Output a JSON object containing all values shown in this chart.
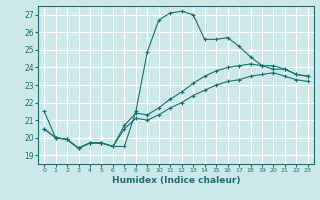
{
  "title": "",
  "xlabel": "Humidex (Indice chaleur)",
  "xlim": [
    -0.5,
    23.5
  ],
  "ylim": [
    18.5,
    27.5
  ],
  "yticks": [
    19,
    20,
    21,
    22,
    23,
    24,
    25,
    26,
    27
  ],
  "xticks": [
    0,
    1,
    2,
    3,
    4,
    5,
    6,
    7,
    8,
    9,
    10,
    11,
    12,
    13,
    14,
    15,
    16,
    17,
    18,
    19,
    20,
    21,
    22,
    23
  ],
  "bg_color": "#cde8e8",
  "line_color": "#1a7070",
  "grid_color": "#ffffff",
  "lines": [
    {
      "x": [
        0,
        1,
        2,
        3,
        4,
        5,
        6,
        7,
        8,
        9,
        10,
        11,
        12,
        13,
        14,
        15,
        16,
        17,
        18,
        19,
        20,
        21,
        22,
        23
      ],
      "y": [
        21.5,
        20.0,
        19.9,
        19.4,
        19.7,
        19.7,
        19.5,
        19.5,
        21.5,
        24.9,
        26.7,
        27.1,
        27.2,
        27.0,
        25.6,
        25.6,
        25.7,
        25.2,
        24.6,
        24.1,
        23.9,
        23.9,
        23.6,
        23.5
      ]
    },
    {
      "x": [
        0,
        1,
        2,
        3,
        4,
        5,
        6,
        7,
        8,
        9,
        10,
        11,
        12,
        13,
        14,
        15,
        16,
        17,
        18,
        19,
        20,
        21,
        22,
        23
      ],
      "y": [
        20.5,
        20.0,
        19.9,
        19.4,
        19.7,
        19.7,
        19.5,
        20.7,
        21.4,
        21.3,
        21.7,
        22.2,
        22.6,
        23.1,
        23.5,
        23.8,
        24.0,
        24.1,
        24.2,
        24.1,
        24.1,
        23.9,
        23.6,
        23.5
      ]
    },
    {
      "x": [
        0,
        1,
        2,
        3,
        4,
        5,
        6,
        7,
        8,
        9,
        10,
        11,
        12,
        13,
        14,
        15,
        16,
        17,
        18,
        19,
        20,
        21,
        22,
        23
      ],
      "y": [
        20.5,
        20.0,
        19.9,
        19.4,
        19.7,
        19.7,
        19.5,
        20.5,
        21.1,
        21.0,
        21.3,
        21.7,
        22.0,
        22.4,
        22.7,
        23.0,
        23.2,
        23.3,
        23.5,
        23.6,
        23.7,
        23.5,
        23.3,
        23.2
      ]
    }
  ]
}
